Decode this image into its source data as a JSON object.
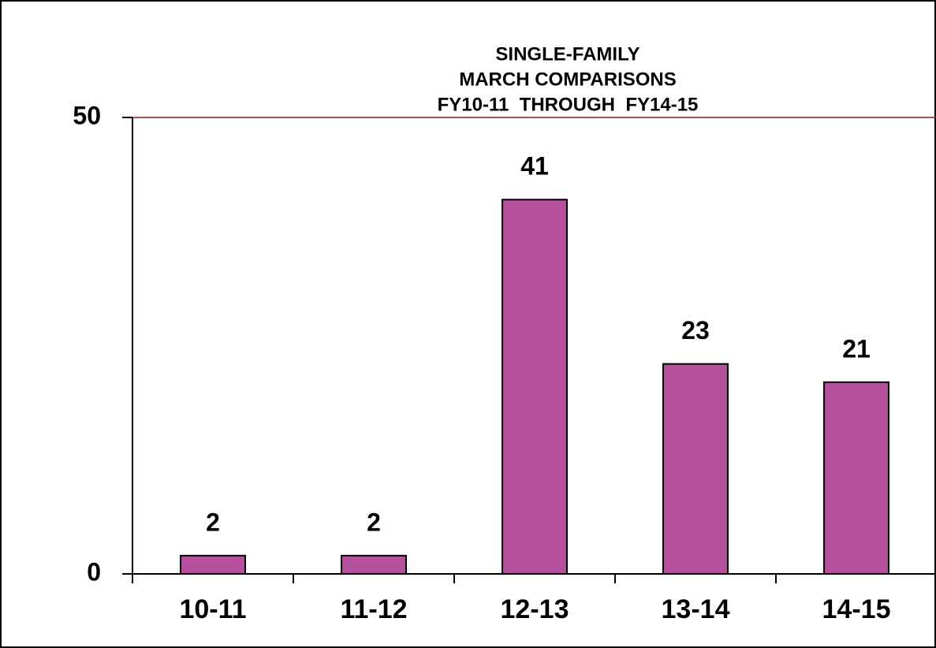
{
  "chart_data": {
    "type": "bar",
    "title": [
      "SINGLE-FAMILY",
      "MARCH COMPARISONS",
      "FY10-11  THROUGH  FY14-15"
    ],
    "categories": [
      "10-11",
      "11-12",
      "12-13",
      "13-14",
      "14-15"
    ],
    "values": [
      2,
      2,
      41,
      23,
      21
    ],
    "color": "#b5509f",
    "grid_color": "#8b1a1a",
    "ylim": [
      0,
      50
    ],
    "yticks": [
      0,
      50
    ],
    "grid": true
  }
}
